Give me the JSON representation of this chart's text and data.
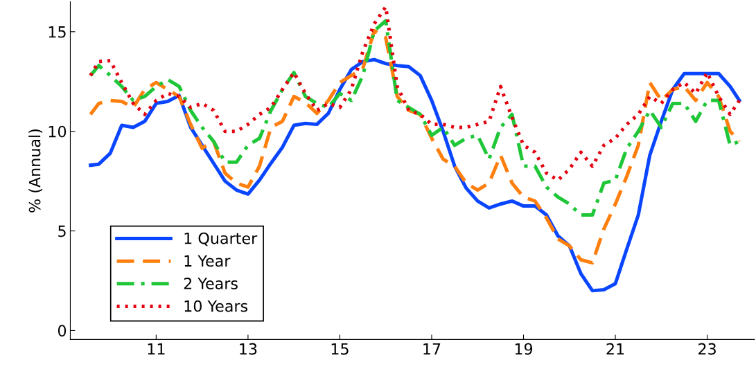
{
  "chart_data": {
    "type": "line",
    "ylabel": "% (Annual)",
    "x": [
      9.57,
      9.75,
      10.0,
      10.25,
      10.5,
      10.75,
      11.0,
      11.25,
      11.5,
      11.75,
      12.0,
      12.25,
      12.5,
      12.75,
      13.0,
      13.25,
      13.5,
      13.75,
      14.0,
      14.25,
      14.5,
      14.75,
      15.0,
      15.25,
      15.5,
      15.75,
      16.0,
      16.25,
      16.5,
      16.75,
      17.0,
      17.25,
      17.5,
      17.75,
      18.0,
      18.25,
      18.5,
      18.75,
      19.0,
      19.25,
      19.5,
      19.75,
      20.0,
      20.25,
      20.5,
      20.75,
      21.0,
      21.25,
      21.5,
      21.75,
      22.0,
      22.25,
      22.5,
      22.75,
      23.0,
      23.25,
      23.5,
      23.7
    ],
    "series": [
      {
        "name": "1 Quarter",
        "color": "#0a46ff",
        "line_style": "solid",
        "values": [
          8.3,
          8.35,
          8.9,
          10.3,
          10.2,
          10.5,
          11.4,
          11.5,
          11.8,
          10.2,
          9.3,
          8.4,
          7.5,
          7.05,
          6.85,
          7.55,
          8.4,
          9.2,
          10.3,
          10.4,
          10.35,
          10.9,
          12.1,
          13.1,
          13.5,
          13.6,
          13.4,
          13.3,
          13.25,
          12.8,
          11.55,
          10.0,
          8.25,
          7.15,
          6.5,
          6.15,
          6.35,
          6.5,
          6.25,
          6.25,
          5.8,
          4.75,
          4.25,
          2.85,
          2.0,
          2.05,
          2.35,
          4.1,
          5.8,
          8.8,
          10.5,
          12.1,
          12.9,
          12.9,
          12.9,
          12.9,
          12.25,
          11.55
        ]
      },
      {
        "name": "1 Year",
        "color": "#ff7f0e",
        "line_style": "dashed",
        "values": [
          10.85,
          11.4,
          11.55,
          11.5,
          11.2,
          12.1,
          12.45,
          12.1,
          11.75,
          10.35,
          9.15,
          9.5,
          7.9,
          7.4,
          7.2,
          8.25,
          10.2,
          10.5,
          11.75,
          11.45,
          10.9,
          11.55,
          12.45,
          12.8,
          13.15,
          15.05,
          14.7,
          11.75,
          11.05,
          10.85,
          9.65,
          8.6,
          8.25,
          7.4,
          7.05,
          7.4,
          8.8,
          7.4,
          6.7,
          6.5,
          5.65,
          4.6,
          4.25,
          3.55,
          3.4,
          5.1,
          6.35,
          7.75,
          9.3,
          12.45,
          11.55,
          12.1,
          12.25,
          11.55,
          12.45,
          11.75,
          10.0,
          9.5
        ]
      },
      {
        "name": "2 Years",
        "color": "#1fc738",
        "line_style": "dashdot",
        "values": [
          12.8,
          13.3,
          12.8,
          12.25,
          11.55,
          11.75,
          12.25,
          12.6,
          12.25,
          11.05,
          10.2,
          9.5,
          8.45,
          8.45,
          9.3,
          9.65,
          11.05,
          12.1,
          12.95,
          11.75,
          11.4,
          11.2,
          11.9,
          11.55,
          12.8,
          15.05,
          15.55,
          11.55,
          11.2,
          10.85,
          9.8,
          10.2,
          9.3,
          9.65,
          9.8,
          8.6,
          10.2,
          10.85,
          8.25,
          8.25,
          7.2,
          6.7,
          6.35,
          5.8,
          5.8,
          7.4,
          7.55,
          9.15,
          10.0,
          11.05,
          10.2,
          11.4,
          11.4,
          10.5,
          11.55,
          11.55,
          9.3,
          9.5
        ]
      },
      {
        "name": "10 Years",
        "color": "#e3000f",
        "line_style": "dotted",
        "values": [
          12.8,
          13.5,
          13.55,
          12.45,
          11.4,
          10.85,
          11.55,
          11.9,
          11.75,
          11.2,
          11.4,
          11.05,
          10.0,
          10.0,
          10.35,
          10.85,
          11.2,
          12.1,
          12.95,
          11.9,
          11.05,
          11.4,
          11.2,
          12.1,
          14.0,
          15.4,
          16.25,
          12.25,
          11.05,
          10.85,
          10.35,
          10.35,
          10.2,
          10.2,
          10.35,
          10.5,
          12.25,
          10.7,
          9.3,
          8.95,
          7.9,
          7.55,
          8.1,
          8.95,
          8.25,
          9.3,
          9.65,
          10.35,
          10.85,
          11.75,
          11.4,
          12.1,
          12.45,
          11.9,
          12.95,
          11.75,
          10.85,
          11.55
        ]
      }
    ],
    "xlim": [
      9.13,
      24.03
    ],
    "ylim": [
      -0.45,
      16.5
    ],
    "xticks": [
      11,
      13,
      15,
      17,
      19,
      21,
      23
    ],
    "yticks": [
      0,
      5,
      10,
      15
    ],
    "grid": false,
    "legend": "bottom left",
    "marker": "none"
  }
}
